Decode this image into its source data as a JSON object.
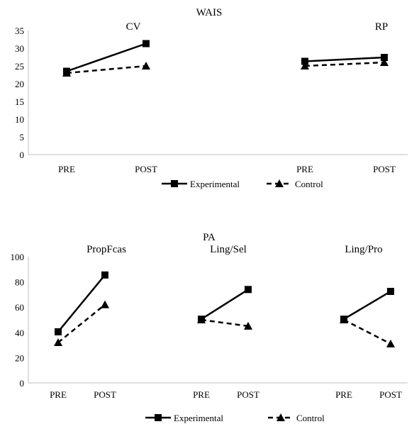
{
  "chart_data": [
    {
      "type": "line",
      "title": "WAIS",
      "panels": [
        "CV",
        "RP"
      ],
      "categories": [
        "PRE",
        "POST"
      ],
      "ylim": [
        0,
        35
      ],
      "yticks": [
        0,
        5,
        10,
        15,
        20,
        25,
        30,
        35
      ],
      "grid": false,
      "legend_position": "bottom",
      "series": [
        {
          "name": "Experimental",
          "style": "solid",
          "marker": "square",
          "color": "#000000",
          "values": [
            [
              23.5,
              31.3
            ],
            [
              26.3,
              27.4
            ]
          ]
        },
        {
          "name": "Control",
          "style": "dashed",
          "marker": "triangle",
          "color": "#000000",
          "values": [
            [
              23.0,
              25.0
            ],
            [
              25.0,
              26.0
            ]
          ]
        }
      ]
    },
    {
      "type": "line",
      "title": "PA",
      "panels": [
        "PropFcas",
        "Ling/Sel",
        "Ling/Pro"
      ],
      "categories": [
        "PRE",
        "POST"
      ],
      "ylim": [
        0,
        100
      ],
      "yticks": [
        0,
        20,
        40,
        60,
        80,
        100
      ],
      "grid": false,
      "legend_position": "bottom",
      "series": [
        {
          "name": "Experimental",
          "style": "solid",
          "marker": "square",
          "color": "#000000",
          "values": [
            [
              40.5,
              85.5
            ],
            [
              50.5,
              74.0
            ],
            [
              50.5,
              72.5
            ]
          ]
        },
        {
          "name": "Control",
          "style": "dashed",
          "marker": "triangle",
          "color": "#000000",
          "values": [
            [
              32.0,
              62.0
            ],
            [
              50.0,
              45.0
            ],
            [
              50.0,
              31.0
            ]
          ]
        }
      ]
    }
  ]
}
